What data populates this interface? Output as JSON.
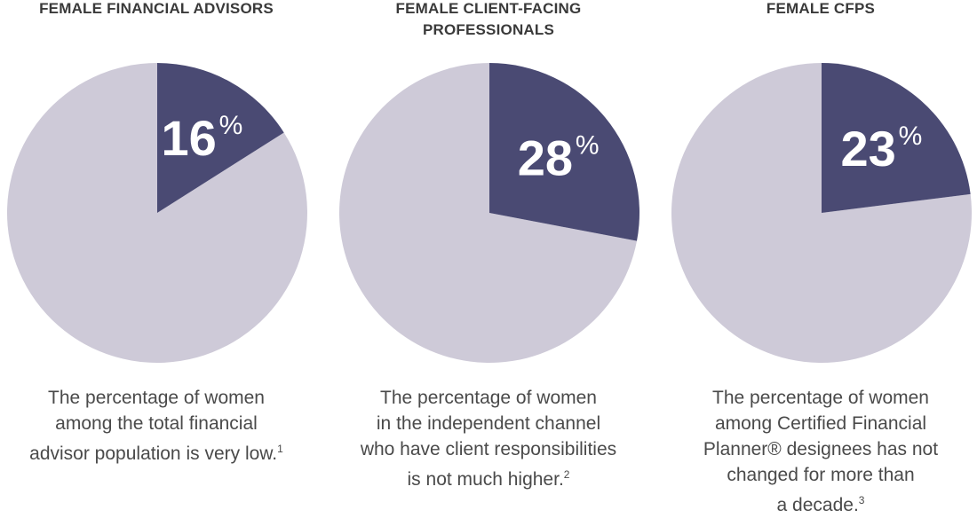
{
  "colors": {
    "highlight": "#4a4a73",
    "rest": "#cecad8"
  },
  "chart_data": [
    {
      "type": "pie",
      "title_lines": [
        "FEMALE FINANCIAL ADVISORS"
      ],
      "slices": [
        {
          "label": "16%",
          "value": 16
        },
        {
          "label": "",
          "value": 84
        }
      ],
      "value_label": {
        "number": "16",
        "unit": "%"
      },
      "caption_lines": [
        "The percentage of women",
        "among the total financial",
        "advisor population is very low."
      ],
      "footnote": "1"
    },
    {
      "type": "pie",
      "title_lines": [
        "FEMALE CLIENT-FACING",
        "PROFESSIONALS"
      ],
      "slices": [
        {
          "label": "28%",
          "value": 28
        },
        {
          "label": "",
          "value": 72
        }
      ],
      "value_label": {
        "number": "28",
        "unit": "%"
      },
      "caption_lines": [
        "The percentage of women",
        "in the independent channel",
        "who have client responsibilities",
        "is not much higher."
      ],
      "footnote": "2"
    },
    {
      "type": "pie",
      "title_lines": [
        "FEMALE CFPS"
      ],
      "slices": [
        {
          "label": "23%",
          "value": 23
        },
        {
          "label": "",
          "value": 77
        }
      ],
      "value_label": {
        "number": "23",
        "unit": "%"
      },
      "caption_lines": [
        "The percentage of women",
        "among Certified Financial",
        "Planner® designees has not",
        "changed for more than",
        "a decade."
      ],
      "footnote": "3"
    }
  ]
}
